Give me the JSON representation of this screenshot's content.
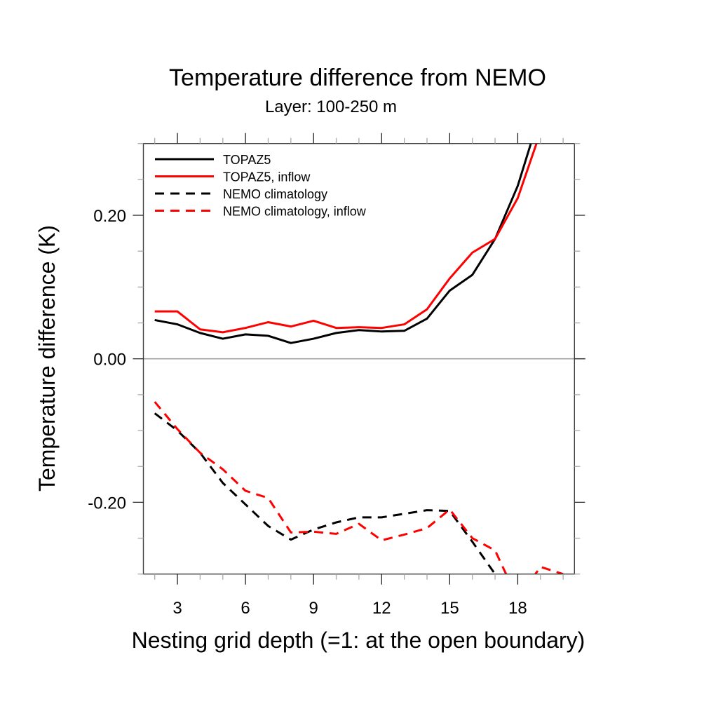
{
  "chart_data": {
    "type": "line",
    "title": "Temperature difference from NEMO",
    "subtitle": "Layer: 100-250 m",
    "xlabel": "Nesting grid depth (=1: at the open boundary)",
    "ylabel": "Temperature difference (K)",
    "xlim": [
      1.5,
      20.5
    ],
    "ylim": [
      -0.3,
      0.3
    ],
    "xticks": [
      3,
      6,
      9,
      12,
      15,
      18
    ],
    "xtick_labels": [
      "3",
      "6",
      "9",
      "12",
      "15",
      "18"
    ],
    "xminor_step": 1,
    "yticks": [
      -0.2,
      0.0,
      0.2
    ],
    "ytick_labels": [
      "-0.20",
      "0.00",
      "0.20"
    ],
    "yminor_step": 0.05,
    "zero_line": true,
    "grid": false,
    "legend_position": "top-left",
    "series": [
      {
        "name": "TOPAZ5",
        "color": "#000000",
        "dash": "solid",
        "x": [
          2,
          3,
          4,
          5,
          6,
          7,
          8,
          9,
          10,
          11,
          12,
          13,
          14,
          15,
          16,
          17,
          18,
          19
        ],
        "values": [
          0.054,
          0.048,
          0.036,
          0.028,
          0.034,
          0.032,
          0.022,
          0.028,
          0.036,
          0.04,
          0.038,
          0.039,
          0.056,
          0.095,
          0.117,
          0.167,
          0.241,
          0.343
        ]
      },
      {
        "name": "TOPAZ5, inflow",
        "color": "#ff0000",
        "dash": "solid",
        "x": [
          2,
          3,
          4,
          5,
          6,
          7,
          8,
          9,
          10,
          11,
          12,
          13,
          14,
          15,
          16,
          17,
          18,
          19
        ],
        "values": [
          0.066,
          0.066,
          0.041,
          0.037,
          0.043,
          0.051,
          0.045,
          0.053,
          0.043,
          0.044,
          0.043,
          0.048,
          0.069,
          0.112,
          0.148,
          0.167,
          0.224,
          0.316
        ]
      },
      {
        "name": "NEMO climatology",
        "color": "#000000",
        "dash": "dashed",
        "x": [
          2,
          3,
          4,
          5,
          6,
          7,
          8,
          9,
          10,
          11,
          12,
          13,
          14,
          15,
          16,
          17,
          18
        ],
        "values": [
          -0.076,
          -0.1,
          -0.131,
          -0.173,
          -0.203,
          -0.233,
          -0.252,
          -0.238,
          -0.228,
          -0.221,
          -0.221,
          -0.216,
          -0.211,
          -0.212,
          -0.255,
          -0.3,
          -0.345
        ]
      },
      {
        "name": "NEMO climatology, inflow",
        "color": "#ff0000",
        "dash": "dashed",
        "x": [
          2,
          3,
          4,
          5,
          6,
          7,
          8,
          9,
          10,
          11,
          12,
          13,
          14,
          15,
          16,
          17,
          18,
          19,
          20
        ],
        "values": [
          -0.06,
          -0.098,
          -0.131,
          -0.154,
          -0.184,
          -0.194,
          -0.242,
          -0.241,
          -0.244,
          -0.23,
          -0.253,
          -0.245,
          -0.236,
          -0.21,
          -0.25,
          -0.267,
          -0.335,
          -0.29,
          -0.3
        ]
      }
    ]
  }
}
